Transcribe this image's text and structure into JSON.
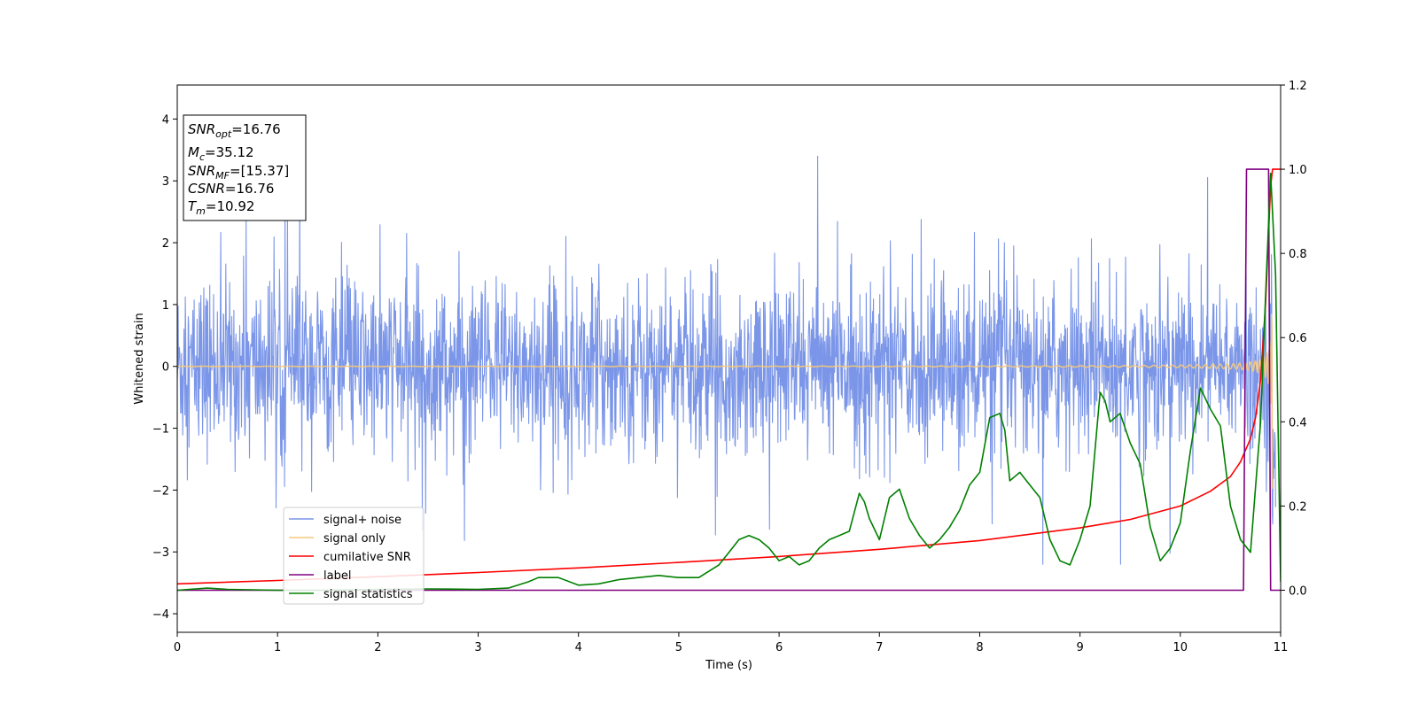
{
  "chart_data": {
    "type": "line",
    "title": "",
    "xlabel": "Time (s)",
    "ylabel": "Whitened strain",
    "xlim": [
      0,
      11
    ],
    "ylim": [
      -4.3,
      4.55
    ],
    "y2lim": [
      -0.1,
      1.2
    ],
    "x_ticks": [
      0,
      1,
      2,
      3,
      4,
      5,
      6,
      7,
      8,
      9,
      10,
      11
    ],
    "y_ticks": [
      -4,
      -3,
      -2,
      -1,
      0,
      1,
      2,
      3,
      4
    ],
    "y2_ticks": [
      0.0,
      0.2,
      0.4,
      0.6,
      0.8,
      1.0,
      1.2
    ],
    "y_tick_labels": [
      "−4",
      "−3",
      "−2",
      "−1",
      "0",
      "1",
      "2",
      "3",
      "4"
    ],
    "y2_tick_labels": [
      "0.0",
      "0.2",
      "0.4",
      "0.6",
      "0.8",
      "1.0",
      "1.2"
    ],
    "grid": false,
    "legend_position": "lower-left",
    "annotation": {
      "lines": [
        {
          "sym": "SNR",
          "sub": "opt",
          "value": "=16.76"
        },
        {
          "sym": "M",
          "sub": "c",
          "value": "=35.12"
        },
        {
          "sym": "SNR",
          "sub": "MF",
          "value": "=[15.37]"
        },
        {
          "sym": "CSNR",
          "sub": "",
          "value": "=16.76"
        },
        {
          "sym": "T",
          "sub": "m",
          "value": "=10.92"
        }
      ]
    },
    "series": [
      {
        "name": "signal+ noise",
        "color": "#7b96e8",
        "axis": "left",
        "kind": "noise",
        "noise_std": 0.7,
        "x_range": [
          0,
          10.95
        ]
      },
      {
        "name": "signal only",
        "color": "#f5c97a",
        "axis": "left",
        "kind": "chirp",
        "x_range": [
          0,
          10.92
        ]
      },
      {
        "name": "cumilative SNR",
        "color": "#ff0000",
        "axis": "right",
        "x": [
          0,
          1,
          2,
          3,
          4,
          5,
          6,
          7,
          8,
          9,
          9.5,
          10,
          10.3,
          10.5,
          10.6,
          10.7,
          10.75,
          10.8,
          10.85,
          10.88,
          10.9,
          10.92,
          11
        ],
        "y": [
          0.015,
          0.023,
          0.032,
          0.042,
          0.053,
          0.066,
          0.08,
          0.097,
          0.118,
          0.148,
          0.168,
          0.2,
          0.235,
          0.27,
          0.305,
          0.36,
          0.41,
          0.5,
          0.68,
          0.85,
          0.96,
          1.0,
          1.0
        ]
      },
      {
        "name": "label",
        "color": "#800080",
        "axis": "right",
        "x": [
          0,
          10.63,
          10.66,
          10.88,
          10.9,
          11
        ],
        "y": [
          0,
          0,
          1,
          1,
          0,
          0
        ]
      },
      {
        "name": "signal statistics",
        "color": "#008000",
        "axis": "right",
        "x": [
          0,
          0.3,
          0.5,
          1,
          1.5,
          2,
          2.5,
          3,
          3.3,
          3.5,
          3.6,
          3.8,
          4,
          4.2,
          4.4,
          4.6,
          4.8,
          5,
          5.2,
          5.4,
          5.5,
          5.6,
          5.7,
          5.8,
          5.9,
          6,
          6.1,
          6.2,
          6.3,
          6.4,
          6.5,
          6.6,
          6.7,
          6.8,
          6.85,
          6.9,
          7,
          7.1,
          7.2,
          7.3,
          7.4,
          7.5,
          7.6,
          7.7,
          7.8,
          7.9,
          8,
          8.1,
          8.2,
          8.25,
          8.3,
          8.4,
          8.5,
          8.6,
          8.7,
          8.8,
          8.9,
          9,
          9.1,
          9.2,
          9.25,
          9.3,
          9.4,
          9.5,
          9.6,
          9.7,
          9.8,
          9.9,
          10,
          10.1,
          10.2,
          10.3,
          10.4,
          10.5,
          10.6,
          10.7,
          10.8,
          10.85,
          10.9,
          10.95,
          11
        ],
        "y": [
          0,
          0.005,
          0.002,
          0,
          0,
          0.002,
          0.003,
          0.002,
          0.005,
          0.02,
          0.03,
          0.03,
          0.012,
          0.015,
          0.025,
          0.03,
          0.035,
          0.03,
          0.03,
          0.06,
          0.09,
          0.12,
          0.13,
          0.12,
          0.1,
          0.07,
          0.08,
          0.06,
          0.07,
          0.1,
          0.12,
          0.13,
          0.14,
          0.23,
          0.21,
          0.17,
          0.12,
          0.22,
          0.24,
          0.17,
          0.13,
          0.1,
          0.12,
          0.15,
          0.19,
          0.25,
          0.28,
          0.41,
          0.42,
          0.38,
          0.26,
          0.28,
          0.25,
          0.22,
          0.12,
          0.07,
          0.06,
          0.12,
          0.2,
          0.47,
          0.45,
          0.4,
          0.42,
          0.35,
          0.3,
          0.15,
          0.07,
          0.1,
          0.16,
          0.33,
          0.48,
          0.43,
          0.39,
          0.2,
          0.12,
          0.09,
          0.4,
          0.7,
          0.99,
          0.75,
          0.02
        ]
      }
    ]
  }
}
